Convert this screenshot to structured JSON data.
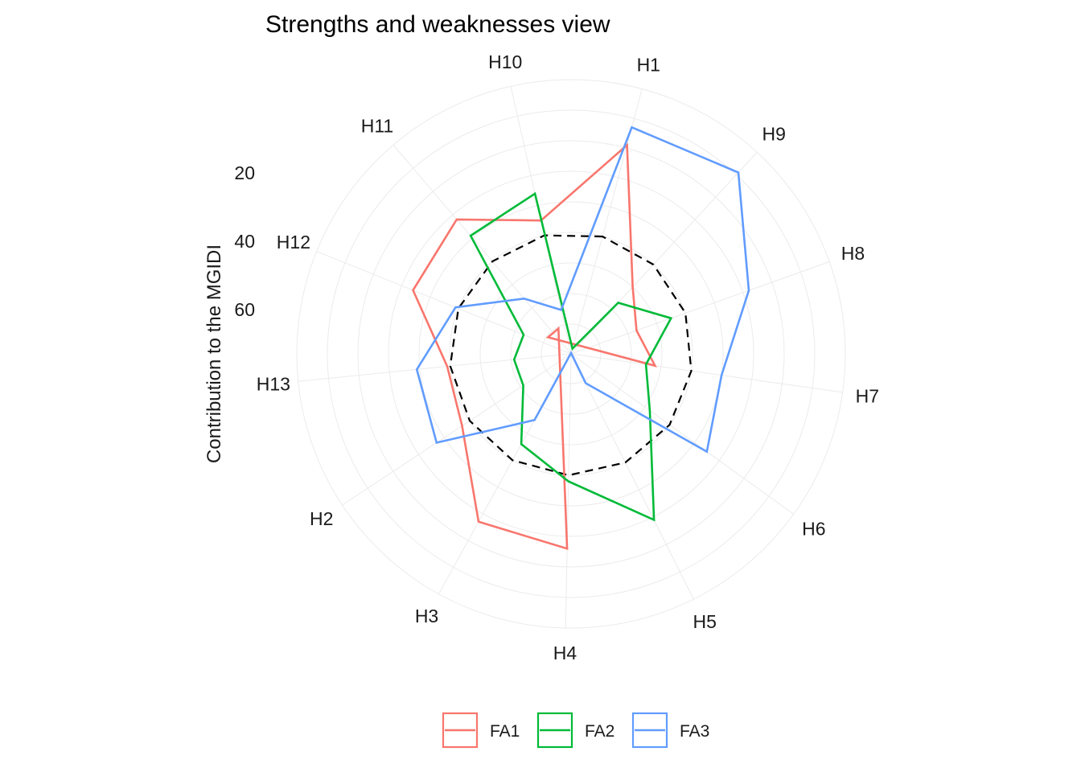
{
  "chart_data": {
    "type": "radar",
    "title": "Strengths and weaknesses view",
    "ylabel": "Contribution to the MGIDI",
    "radial_ticks": [
      "20",
      "40",
      "60"
    ],
    "categories": [
      "H1",
      "H10",
      "H11",
      "H12",
      "H13",
      "H2",
      "H3",
      "H4",
      "H5",
      "H6",
      "H7",
      "H8",
      "H9"
    ],
    "scale_note": "radial axis is reversed: smaller contribution plots farther from the center",
    "series": [
      {
        "name": "FA1",
        "color": "#F8766D",
        "values": [
          19,
          45,
          32,
          34,
          49,
          47,
          27,
          26,
          99,
          99,
          62,
          67,
          60
        ]
      },
      {
        "name": "FA2",
        "color": "#00BA38",
        "values": [
          88,
          36,
          39,
          73,
          71,
          71,
          56,
          48,
          29,
          58,
          65,
          55,
          67
        ]
      },
      {
        "name": "FA3",
        "color": "#619CFF",
        "values": [
          13,
          75,
          66,
          49,
          39,
          37,
          65,
          90,
          79,
          35,
          40,
          28,
          9
        ]
      }
    ],
    "reference": {
      "style": "dashed",
      "color": "#000000",
      "values": [
        50,
        50,
        50,
        50,
        50,
        50,
        50,
        50,
        50,
        50,
        50,
        50,
        50
      ]
    },
    "legend_position": "bottom",
    "grid": true
  }
}
